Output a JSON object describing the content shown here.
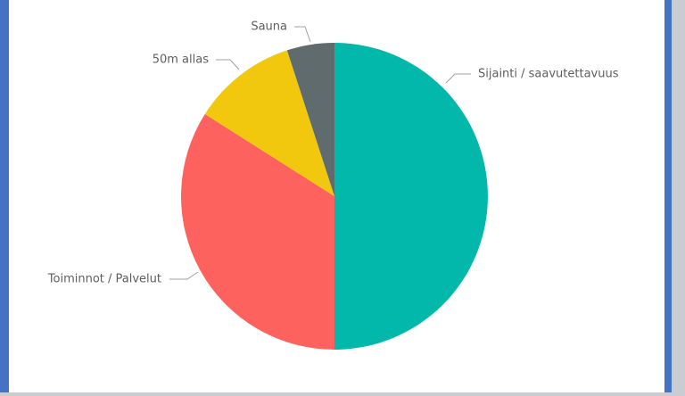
{
  "chart_data": {
    "type": "pie",
    "categories": [
      "Sijainti / saavutettavuus",
      "Toiminnot / Palvelut",
      "50m allas",
      "Sauna"
    ],
    "values": [
      50,
      34,
      11,
      5
    ],
    "colors": [
      "#01b8aa",
      "#fd625e",
      "#f2c80f",
      "#5f6b6d"
    ]
  }
}
